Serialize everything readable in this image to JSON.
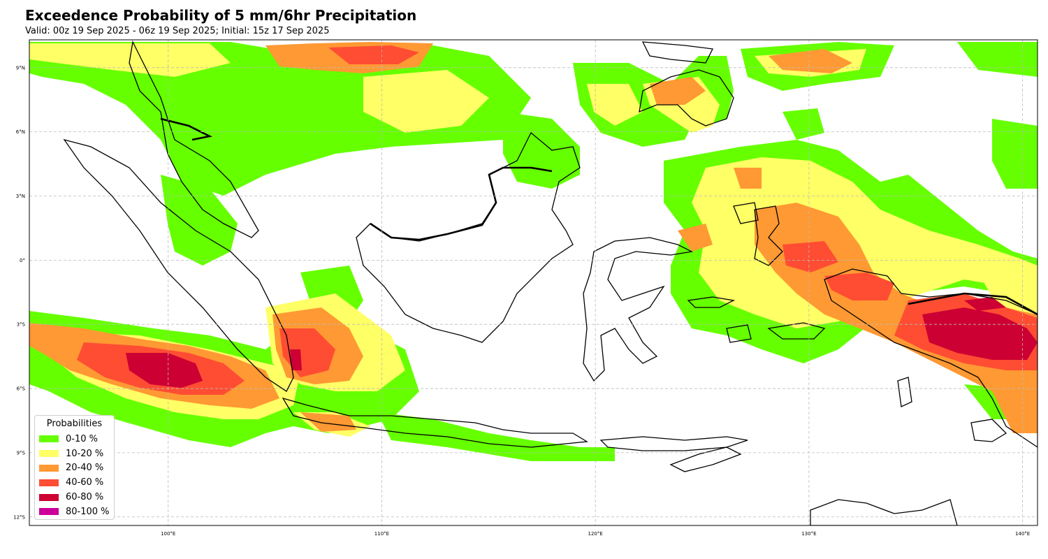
{
  "title": "Exceedence Probability of 5 mm/6hr Precipitation",
  "subtitle": "Valid: 00z 19 Sep 2025 - 06z 19 Sep 2025; Initial: 15z 17 Sep 2025",
  "lat_ticks": [
    {
      "value": 9,
      "label": "9°N"
    },
    {
      "value": 6,
      "label": "6°N"
    },
    {
      "value": 3,
      "label": "3°N"
    },
    {
      "value": 0,
      "label": "0°"
    },
    {
      "value": -3,
      "label": "3°S"
    },
    {
      "value": -6,
      "label": "6°S"
    },
    {
      "value": -9,
      "label": "9°S"
    },
    {
      "value": -12,
      "label": "12°S"
    }
  ],
  "lon_ticks": [
    {
      "value": 100,
      "label": "100°E"
    },
    {
      "value": 110,
      "label": "110°E"
    },
    {
      "value": 120,
      "label": "120°E"
    },
    {
      "value": 130,
      "label": "130°E"
    },
    {
      "value": 140,
      "label": "140°E"
    }
  ],
  "extent": {
    "lon_min": 93.5,
    "lon_max": 140.7,
    "lat_min": -12.4,
    "lat_max": 10.3
  },
  "legend": {
    "title": "Probabilities",
    "items": [
      {
        "label": "0-10 %",
        "color": "#66ff00"
      },
      {
        "label": "10-20 %",
        "color": "#ffff66"
      },
      {
        "label": "20-40 %",
        "color": "#ff9933"
      },
      {
        "label": "40-60 %",
        "color": "#ff4d33"
      },
      {
        "label": "60-80 %",
        "color": "#cc0033"
      },
      {
        "label": "80-100 %",
        "color": "#cc0099"
      }
    ]
  }
}
